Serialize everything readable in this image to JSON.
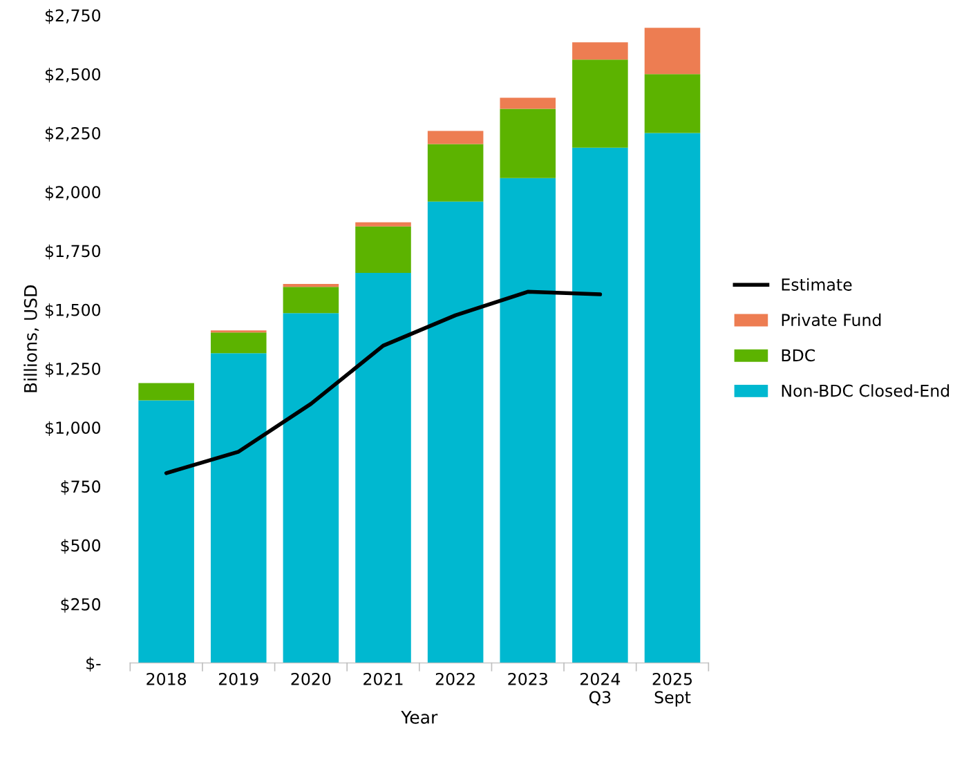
{
  "chart_data": {
    "type": "bar",
    "stacked": true,
    "xlabel": "Year",
    "ylabel": "Billions, USD",
    "categories": [
      "2018",
      "2019",
      "2020",
      "2021",
      "2022",
      "2023",
      "2024\nQ3",
      "2025\nSept"
    ],
    "series": [
      {
        "name": "Non-BDC Closed-End",
        "color": "#00b8d0",
        "values": [
          1115,
          1315,
          1485,
          1656,
          1959,
          2059,
          2188,
          2250
        ]
      },
      {
        "name": "BDC",
        "color": "#5cb300",
        "values": [
          73,
          88,
          112,
          197,
          244,
          294,
          374,
          250
        ]
      },
      {
        "name": "Private Fund",
        "color": "#ed7d52",
        "values": [
          0,
          9,
          12,
          18,
          56,
          47,
          73,
          197
        ]
      },
      {
        "name": "Estimate",
        "type": "line",
        "color": "#000000",
        "values": [
          806,
          897,
          1100,
          1347,
          1476,
          1576,
          1565,
          null
        ]
      }
    ],
    "ylim": [
      0,
      2750
    ],
    "yticks": [
      {
        "value": 0,
        "label": "$-"
      },
      {
        "value": 250,
        "label": "$250"
      },
      {
        "value": 500,
        "label": "$500"
      },
      {
        "value": 750,
        "label": "$750"
      },
      {
        "value": 1000,
        "label": "$1,000"
      },
      {
        "value": 1250,
        "label": "$1,250"
      },
      {
        "value": 1500,
        "label": "$1,500"
      },
      {
        "value": 1750,
        "label": "$1,750"
      },
      {
        "value": 2000,
        "label": "$2,000"
      },
      {
        "value": 2250,
        "label": "$2,250"
      },
      {
        "value": 2500,
        "label": "$2,500"
      },
      {
        "value": 2750,
        "label": "$2,750"
      }
    ],
    "grid": false,
    "legend": "right"
  }
}
